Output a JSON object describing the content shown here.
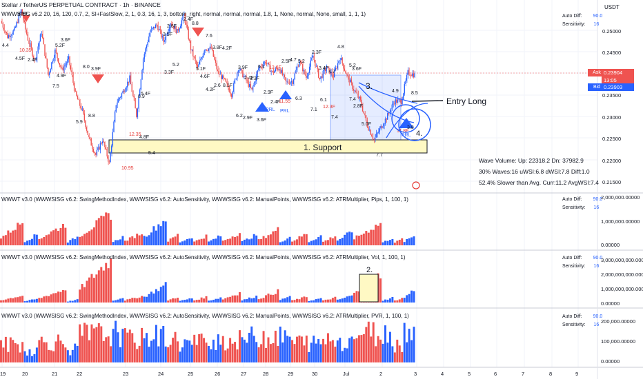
{
  "header": {
    "symbol_title": "Stellar / TetherUS PERPETUAL CONTRACT · 1h · BINANCE",
    "indicator_params": "WWWSISG v6.2 20, 16, 120, 0.7, 2, SI+FastSlow, 2, 1, 0.3, 16, 1, 3, bottom_right, normal, normal, normal, 1.8, 1, None, normal, None, small, 1, 1, 1)",
    "currency": "USDT"
  },
  "panes": [
    {
      "title": "WWWT v3.0 (WWWSISG v6.2: SwingMethodIndex, WWWSISG v6.2: AutoSensitivity, WWWSISG v6.2: ManualPoints, WWWSISG v6.2: ATRMultiplier, Pips, 1, 100, 1)",
      "axis": [
        "2,000,000.00000",
        "1,000,000.00000",
        "0.00000"
      ]
    },
    {
      "title": "WWWT v3.0 (WWWSISG v6.2: SwingMethodIndex, WWWSISG v6.2: AutoSensitivity, WWWSISG v6.2: ManualPoints, WWWSISG v6.2: ATRMultiplier, Vol, 1, 100, 1)",
      "axis": [
        "3,000,000,000.00000",
        "2,000,000,000.00000",
        "1,000,000,000.00000",
        "0.00000"
      ]
    },
    {
      "title": "WWWT v3.0 (WWWSISG v6.2: SwingMethodIndex, WWWSISG v6.2: AutoSensitivity, WWWSISG v6.2: ManualPoints, WWWSISG v6.2: ATRMultiplier, PVR, 1, 100, 1)",
      "axis": [
        "200,000.00000",
        "100,000.00000",
        "0.00000"
      ]
    }
  ],
  "side_info": {
    "auto_diff_label": "Auto Diff:",
    "auto_diff_value": "90.0",
    "sensitivity_label": "Sensitivity:",
    "sensitivity_value": "16"
  },
  "price_axis": [
    "0.25000",
    "0.24500",
    "0.23500",
    "0.23000",
    "0.22500",
    "0.22000",
    "0.21500"
  ],
  "ask": {
    "label": "Ask",
    "price": "0.23904",
    "countdown": "13:05"
  },
  "bid": {
    "label": "Bid",
    "price": "0.23903"
  },
  "time_axis": [
    "19",
    "20",
    "21",
    "22",
    "23",
    "24",
    "25",
    "26",
    "27",
    "28",
    "29",
    "30",
    "Jul",
    "2",
    "3",
    "4",
    "5",
    "6",
    "7",
    "8",
    "9"
  ],
  "annotations": {
    "support": "1. Support",
    "box2": "2.",
    "box3": "3.",
    "circle4": "4.",
    "entry": "Entry Long"
  },
  "stats": {
    "line1": "Wave Volume: Up: 22318.2 Dn: 37982.9",
    "line2": "30% Waves:16 uWSI:6.8 dWSI:7.8 Diff:1.0",
    "line3": "52.4% Slower than Avg. Curr:11.2 AvgWSI:7.4"
  },
  "wave_labels": [
    {
      "t": "4.4",
      "x": 3,
      "y": 68
    },
    {
      "t": "3.9F",
      "x": 26,
      "y": 22
    },
    {
      "t": "10.35",
      "x": 28,
      "y": 75,
      "c": "#e53935"
    },
    {
      "t": "4.5F",
      "x": 22,
      "y": 87
    },
    {
      "t": "2.4F",
      "x": 40,
      "y": 89
    },
    {
      "t": "5.2F",
      "x": 80,
      "y": 68
    },
    {
      "t": "3.6F",
      "x": 88,
      "y": 60
    },
    {
      "t": "4.9F",
      "x": 82,
      "y": 112
    },
    {
      "t": "7.5",
      "x": 76,
      "y": 127
    },
    {
      "t": "8.0",
      "x": 120,
      "y": 99
    },
    {
      "t": "3.9F",
      "x": 132,
      "y": 102
    },
    {
      "t": "8.8",
      "x": 128,
      "y": 170
    },
    {
      "t": "5.9",
      "x": 110,
      "y": 179
    },
    {
      "t": "12.35",
      "x": 187,
      "y": 197,
      "c": "#e53935"
    },
    {
      "t": "4.8F",
      "x": 202,
      "y": 201
    },
    {
      "t": "10.95",
      "x": 176,
      "y": 246,
      "c": "#e53935"
    },
    {
      "t": "5.4",
      "x": 215,
      "y": 224
    },
    {
      "t": "8.9",
      "x": 200,
      "y": 142
    },
    {
      "t": "5.4F",
      "x": 204,
      "y": 138
    },
    {
      "t": "2.6F",
      "x": 242,
      "y": 40
    },
    {
      "t": "3.5F",
      "x": 236,
      "y": 52
    },
    {
      "t": "3.3F",
      "x": 238,
      "y": 107
    },
    {
      "t": "5.2",
      "x": 250,
      "y": 96
    },
    {
      "t": "2.4F",
      "x": 266,
      "y": 30
    },
    {
      "t": "8.8",
      "x": 278,
      "y": 36
    },
    {
      "t": "7.6",
      "x": 298,
      "y": 54
    },
    {
      "t": "3.8F",
      "x": 308,
      "y": 71
    },
    {
      "t": "4.2F",
      "x": 322,
      "y": 72
    },
    {
      "t": "5.1F",
      "x": 284,
      "y": 102
    },
    {
      "t": "4.6F",
      "x": 290,
      "y": 113
    },
    {
      "t": "2.6",
      "x": 310,
      "y": 126
    },
    {
      "t": "8.1F",
      "x": 323,
      "y": 126
    },
    {
      "t": "4.2F",
      "x": 298,
      "y": 132
    },
    {
      "t": "3.9F",
      "x": 345,
      "y": 100
    },
    {
      "t": "2.4F",
      "x": 354,
      "y": 115
    },
    {
      "t": "3.3F",
      "x": 362,
      "y": 116
    },
    {
      "t": "6.2",
      "x": 342,
      "y": 170
    },
    {
      "t": "2.9F",
      "x": 352,
      "y": 173
    },
    {
      "t": "3.6F",
      "x": 372,
      "y": 176
    },
    {
      "t": "2.9F",
      "x": 382,
      "y": 136
    },
    {
      "t": "6.1",
      "x": 374,
      "y": 99
    },
    {
      "t": "13.6F",
      "x": 390,
      "y": 100,
      "c": "#e53935"
    },
    {
      "t": "2.5F",
      "x": 408,
      "y": 91
    },
    {
      "t": "4.7",
      "x": 420,
      "y": 89
    },
    {
      "t": "5.2",
      "x": 432,
      "y": 91
    },
    {
      "t": "2.4F",
      "x": 392,
      "y": 150
    },
    {
      "t": "11.55",
      "x": 404,
      "y": 149,
      "c": "#e53935"
    },
    {
      "t": "6.3",
      "x": 428,
      "y": 145
    },
    {
      "t": "2.3F",
      "x": 452,
      "y": 78
    },
    {
      "t": "3.4F",
      "x": 462,
      "y": 101
    },
    {
      "t": "4.7",
      "x": 476,
      "y": 106
    },
    {
      "t": "4.8",
      "x": 489,
      "y": 70
    },
    {
      "t": "6.1",
      "x": 464,
      "y": 147
    },
    {
      "t": "7.1",
      "x": 450,
      "y": 161
    },
    {
      "t": "7.4",
      "x": 480,
      "y": 172
    },
    {
      "t": "12.3F",
      "x": 468,
      "y": 157,
      "c": "#e53935"
    },
    {
      "t": "5.2",
      "x": 506,
      "y": 97
    },
    {
      "t": "3.6F",
      "x": 510,
      "y": 102
    },
    {
      "t": "7.4",
      "x": 506,
      "y": 146
    },
    {
      "t": "2.8F",
      "x": 512,
      "y": 156
    },
    {
      "t": "5.0F",
      "x": 524,
      "y": 182
    },
    {
      "t": "7.7",
      "x": 545,
      "y": 227
    },
    {
      "t": "4.9",
      "x": 568,
      "y": 134
    },
    {
      "t": "8.5",
      "x": 596,
      "y": 137
    },
    {
      "t": "11.8F",
      "x": 575,
      "y": 192,
      "c": "#e53935"
    },
    {
      "t": "3.8",
      "x": 590,
      "y": 187
    }
  ],
  "chart_data": [
    {
      "type": "bar",
      "title": "WWWT v3.0 (WWWSISG v6.2: SwingMethodIndex, WWWSISG v6.2: AutoSensitivity, WWWSISG v6.2: ManualPoints, WWWSISG v6.2: ATRMultiplier, Pips, 1, 100, 1)",
      "ylim": [
        0,
        2000000
      ],
      "wave_groups": [
        {
          "dir": "down",
          "peak": 1100000,
          "len": 10
        },
        {
          "dir": "up",
          "peak": 500000,
          "len": 6
        },
        {
          "dir": "down",
          "peak": 1000000,
          "len": 12
        },
        {
          "dir": "up",
          "peak": 400000,
          "len": 5
        },
        {
          "dir": "down",
          "peak": 1500000,
          "len": 14
        },
        {
          "dir": "up",
          "peak": 400000,
          "len": 5
        },
        {
          "dir": "down",
          "peak": 600000,
          "len": 8
        },
        {
          "dir": "up",
          "peak": 1250000,
          "len": 10
        },
        {
          "dir": "down",
          "peak": 500000,
          "len": 5
        },
        {
          "dir": "up",
          "peak": 400000,
          "len": 6
        },
        {
          "dir": "down",
          "peak": 450000,
          "len": 6
        },
        {
          "dir": "up",
          "peak": 450000,
          "len": 6
        },
        {
          "dir": "down",
          "peak": 600000,
          "len": 8
        },
        {
          "dir": "up",
          "peak": 500000,
          "len": 7
        },
        {
          "dir": "down",
          "peak": 750000,
          "len": 9
        },
        {
          "dir": "up",
          "peak": 400000,
          "len": 5
        },
        {
          "dir": "down",
          "peak": 550000,
          "len": 7
        },
        {
          "dir": "up",
          "peak": 450000,
          "len": 6
        },
        {
          "dir": "down",
          "peak": 450000,
          "len": 6
        },
        {
          "dir": "up",
          "peak": 650000,
          "len": 7
        },
        {
          "dir": "down",
          "peak": 1050000,
          "len": 12
        },
        {
          "dir": "up",
          "peak": 350000,
          "len": 5
        },
        {
          "dir": "down",
          "peak": 300000,
          "len": 4
        },
        {
          "dir": "up",
          "peak": 450000,
          "len": 5
        }
      ]
    },
    {
      "type": "bar",
      "title": "WWWT v3.0 (WWWSISG v6.2: SwingMethodIndex, WWWSISG v6.2: AutoSensitivity, WWWSISG v6.2: ManualPoints, WWWSISG v6.2: ATRMultiplier, Vol, 1, 100, 1)",
      "ylim": [
        0,
        3000000000
      ],
      "wave_groups": [
        {
          "dir": "down",
          "peak": 500000000,
          "len": 10
        },
        {
          "dir": "up",
          "peak": 250000000,
          "len": 6
        },
        {
          "dir": "down",
          "peak": 950000000,
          "len": 12
        },
        {
          "dir": "up",
          "peak": 200000000,
          "len": 5
        },
        {
          "dir": "down",
          "peak": 3100000000,
          "len": 14
        },
        {
          "dir": "up",
          "peak": 350000000,
          "len": 5
        },
        {
          "dir": "down",
          "peak": 450000000,
          "len": 8
        },
        {
          "dir": "up",
          "peak": 1250000000,
          "len": 10
        },
        {
          "dir": "down",
          "peak": 400000000,
          "len": 5
        },
        {
          "dir": "up",
          "peak": 300000000,
          "len": 6
        },
        {
          "dir": "down",
          "peak": 400000000,
          "len": 6
        },
        {
          "dir": "up",
          "peak": 350000000,
          "len": 6
        },
        {
          "dir": "down",
          "peak": 700000000,
          "len": 8
        },
        {
          "dir": "up",
          "peak": 450000000,
          "len": 7
        },
        {
          "dir": "down",
          "peak": 800000000,
          "len": 9
        },
        {
          "dir": "up",
          "peak": 450000000,
          "len": 5
        },
        {
          "dir": "down",
          "peak": 400000000,
          "len": 7
        },
        {
          "dir": "up",
          "peak": 300000000,
          "len": 6
        },
        {
          "dir": "down",
          "peak": 350000000,
          "len": 6
        },
        {
          "dir": "up",
          "peak": 500000000,
          "len": 7
        },
        {
          "dir": "down",
          "peak": 2000000000,
          "len": 12
        },
        {
          "dir": "up",
          "peak": 350000000,
          "len": 5
        },
        {
          "dir": "down",
          "peak": 300000000,
          "len": 4
        },
        {
          "dir": "up",
          "peak": 900000000,
          "len": 5
        }
      ]
    },
    {
      "type": "bar",
      "title": "WWWT v3.0 (WWWSISG v6.2: SwingMethodIndex, WWWSISG v6.2: AutoSensitivity, WWWSISG v6.2: ManualPoints, WWWSISG v6.2: ATRMultiplier, PVR, 1, 100, 1)",
      "ylim": [
        0,
        200000
      ],
      "wave_groups": [
        {
          "dir": "down",
          "peak": 120000,
          "len": 10
        },
        {
          "dir": "up",
          "peak": 80000,
          "len": 6
        },
        {
          "dir": "down",
          "peak": 140000,
          "len": 12
        },
        {
          "dir": "up",
          "peak": 90000,
          "len": 5
        },
        {
          "dir": "down",
          "peak": 190000,
          "len": 14
        },
        {
          "dir": "up",
          "peak": 200000,
          "len": 5
        },
        {
          "dir": "down",
          "peak": 160000,
          "len": 8
        },
        {
          "dir": "up",
          "peak": 180000,
          "len": 10
        },
        {
          "dir": "down",
          "peak": 150000,
          "len": 5
        },
        {
          "dir": "up",
          "peak": 130000,
          "len": 6
        },
        {
          "dir": "down",
          "peak": 140000,
          "len": 6
        },
        {
          "dir": "up",
          "peak": 160000,
          "len": 6
        },
        {
          "dir": "down",
          "peak": 150000,
          "len": 8
        },
        {
          "dir": "up",
          "peak": 170000,
          "len": 7
        },
        {
          "dir": "down",
          "peak": 180000,
          "len": 9
        },
        {
          "dir": "up",
          "peak": 170000,
          "len": 5
        },
        {
          "dir": "down",
          "peak": 140000,
          "len": 7
        },
        {
          "dir": "up",
          "peak": 130000,
          "len": 6
        },
        {
          "dir": "down",
          "peak": 160000,
          "len": 6
        },
        {
          "dir": "up",
          "peak": 150000,
          "len": 7
        },
        {
          "dir": "down",
          "peak": 200000,
          "len": 12
        },
        {
          "dir": "up",
          "peak": 190000,
          "len": 5
        },
        {
          "dir": "down",
          "peak": 130000,
          "len": 4
        },
        {
          "dir": "up",
          "peak": 210000,
          "len": 5
        }
      ]
    },
    {
      "type": "line",
      "title": "Stellar / TetherUS PERPETUAL CONTRACT · 1h · BINANCE",
      "ylim": [
        0.215,
        0.253
      ],
      "support_zone": [
        0.2215,
        0.2252
      ],
      "current_price": 0.23904,
      "price_path": [
        0.2498,
        0.2465,
        0.2478,
        0.252,
        0.246,
        0.2415,
        0.2475,
        0.2385,
        0.2435,
        0.2395,
        0.2418,
        0.2345,
        0.231,
        0.2252,
        0.2218,
        0.225,
        0.22,
        0.2325,
        0.235,
        0.2378,
        0.23,
        0.242,
        0.2475,
        0.249,
        0.2455,
        0.2495,
        0.2475,
        0.251,
        0.244,
        0.2398,
        0.244,
        0.244,
        0.239,
        0.2372,
        0.2345,
        0.24,
        0.2378,
        0.2352,
        0.24,
        0.2413,
        0.239,
        0.24,
        0.237,
        0.2372,
        0.2415,
        0.238,
        0.2425,
        0.2376,
        0.24,
        0.2383,
        0.2422,
        0.2384,
        0.2355,
        0.233,
        0.228,
        0.225,
        0.2275,
        0.23,
        0.233,
        0.233,
        0.239,
        0.2385
      ]
    }
  ]
}
